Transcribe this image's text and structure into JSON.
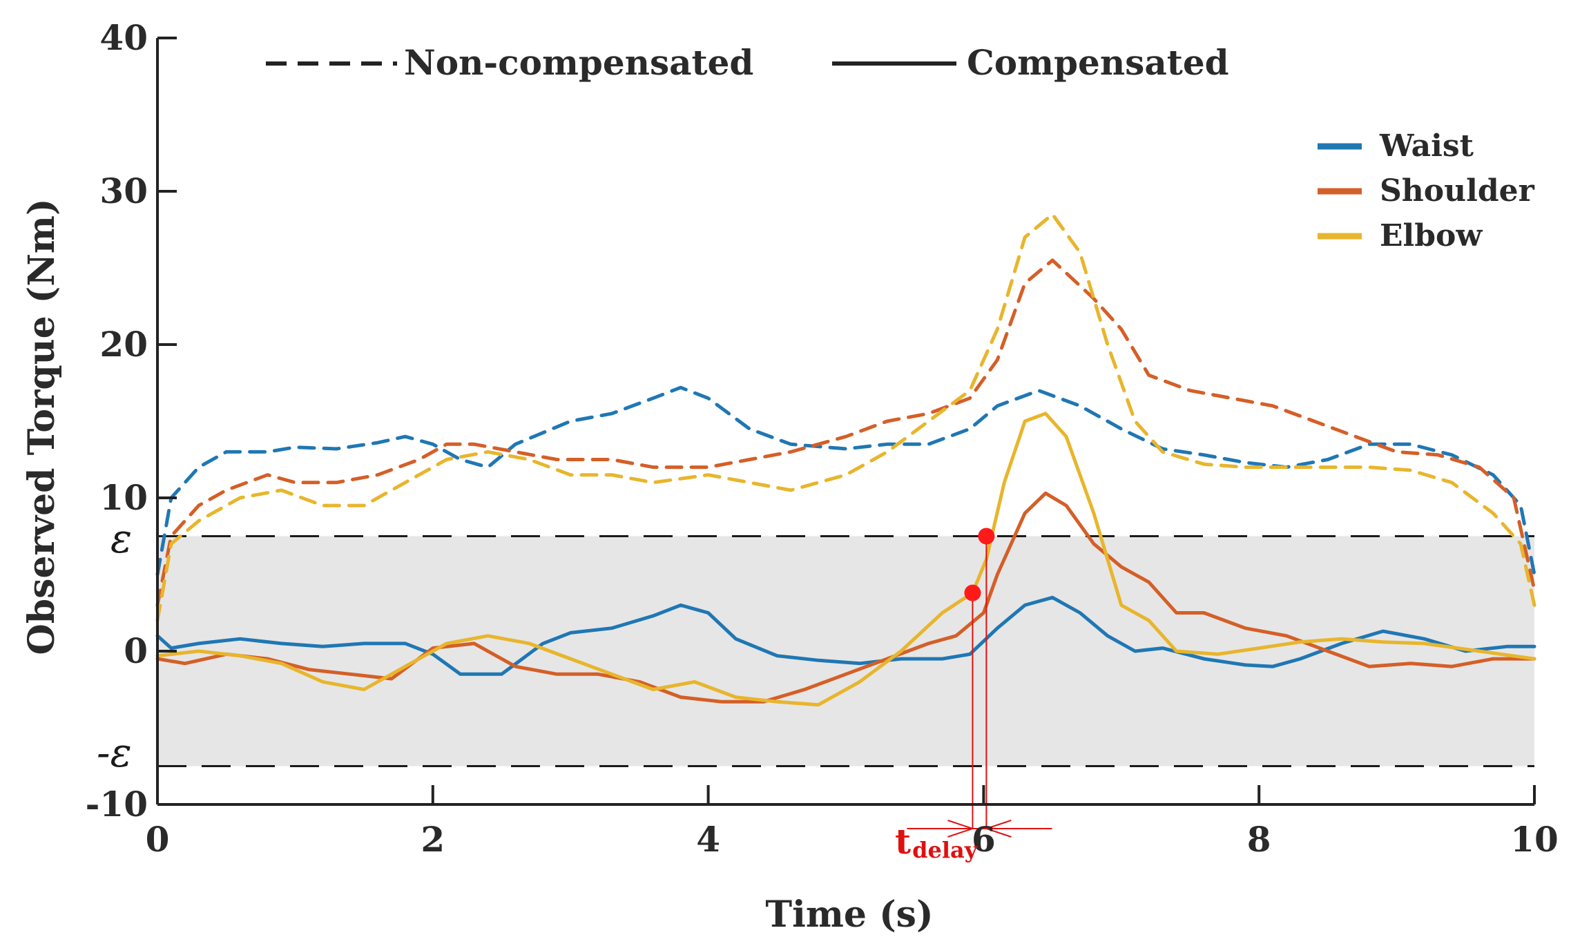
{
  "chart_data": {
    "type": "line",
    "title": "",
    "xlabel": "Time (s)",
    "ylabel": "Observed Torque (Nm)",
    "xlim": [
      0,
      10
    ],
    "ylim": [
      -10,
      40
    ],
    "xticks": [
      0,
      2,
      4,
      6,
      8,
      10
    ],
    "xtick_labels": [
      "0",
      "2",
      "4",
      "6",
      "8",
      "10"
    ],
    "yticks": [
      -10,
      0,
      10,
      20,
      30,
      40
    ],
    "ytick_labels": [
      "-10",
      "0",
      "10",
      "20",
      "30",
      "40"
    ],
    "grid": false,
    "threshold": {
      "value": 7.5,
      "upper_label": "ε",
      "lower_label": "-ε"
    },
    "line_style_legend": [
      {
        "style": "dashed",
        "label": "Non-compensated"
      },
      {
        "style": "solid",
        "label": "Compensated"
      }
    ],
    "colors": {
      "Waist": "#1f77b4",
      "Shoulder": "#d45f27",
      "Elbow": "#e8b52c",
      "band": "#e6e6e6",
      "marker": "#ff1a1a",
      "annotation": "#e01010"
    },
    "series": [
      {
        "name": "Waist",
        "variant": "Non-compensated",
        "style": "dashed",
        "x": [
          0,
          0.1,
          0.3,
          0.5,
          0.8,
          1.0,
          1.3,
          1.6,
          1.8,
          2.0,
          2.2,
          2.4,
          2.6,
          3.0,
          3.3,
          3.6,
          3.8,
          4.0,
          4.3,
          4.6,
          5.0,
          5.3,
          5.6,
          5.9,
          6.1,
          6.4,
          6.7,
          7.0,
          7.3,
          7.6,
          7.9,
          8.2,
          8.5,
          8.8,
          9.1,
          9.4,
          9.7,
          9.9,
          10.0
        ],
        "y": [
          5,
          10,
          12,
          13,
          13,
          13.3,
          13.2,
          13.6,
          14,
          13.5,
          12.5,
          12,
          13.5,
          15,
          15.5,
          16.5,
          17.2,
          16.5,
          14.5,
          13.5,
          13.2,
          13.5,
          13.5,
          14.5,
          16,
          17,
          16,
          14.5,
          13.2,
          12.8,
          12.3,
          12,
          12.5,
          13.5,
          13.5,
          12.8,
          11.5,
          9.5,
          5
        ]
      },
      {
        "name": "Shoulder",
        "variant": "Non-compensated",
        "style": "dashed",
        "x": [
          0,
          0.1,
          0.3,
          0.5,
          0.8,
          1.0,
          1.3,
          1.6,
          1.9,
          2.1,
          2.3,
          2.6,
          2.9,
          3.3,
          3.6,
          4.0,
          4.3,
          4.6,
          5.0,
          5.3,
          5.6,
          5.9,
          6.1,
          6.3,
          6.5,
          6.8,
          7.0,
          7.2,
          7.5,
          7.8,
          8.1,
          8.4,
          8.7,
          9.0,
          9.3,
          9.6,
          9.85,
          10.0
        ],
        "y": [
          3,
          7.5,
          9.5,
          10.5,
          11.5,
          11,
          11,
          11.5,
          12.5,
          13.5,
          13.5,
          13,
          12.5,
          12.5,
          12,
          12,
          12.5,
          13,
          14,
          15,
          15.5,
          16.5,
          19,
          24,
          25.5,
          23,
          21,
          18,
          17,
          16.5,
          16,
          15,
          14,
          13,
          12.8,
          12,
          10,
          4
        ]
      },
      {
        "name": "Elbow",
        "variant": "Non-compensated",
        "style": "dashed",
        "x": [
          0,
          0.1,
          0.3,
          0.6,
          0.9,
          1.2,
          1.5,
          1.8,
          2.1,
          2.4,
          2.7,
          3.0,
          3.3,
          3.6,
          4.0,
          4.3,
          4.6,
          5.0,
          5.3,
          5.6,
          5.9,
          6.1,
          6.3,
          6.5,
          6.7,
          6.9,
          7.1,
          7.3,
          7.6,
          7.9,
          8.2,
          8.5,
          8.8,
          9.1,
          9.4,
          9.7,
          9.9,
          10.0
        ],
        "y": [
          2,
          7,
          8.5,
          10,
          10.5,
          9.5,
          9.5,
          11,
          12.5,
          13,
          12.5,
          11.5,
          11.5,
          11,
          11.5,
          11,
          10.5,
          11.5,
          13,
          15,
          17,
          21,
          27,
          28.5,
          26,
          20,
          15,
          13,
          12.2,
          12,
          12,
          12,
          12,
          11.8,
          11,
          9,
          7,
          3
        ]
      },
      {
        "name": "Waist",
        "variant": "Compensated",
        "style": "solid",
        "x": [
          0,
          0.1,
          0.3,
          0.6,
          0.9,
          1.2,
          1.5,
          1.8,
          2.0,
          2.2,
          2.5,
          2.8,
          3.0,
          3.3,
          3.6,
          3.8,
          4.0,
          4.2,
          4.5,
          4.8,
          5.1,
          5.4,
          5.7,
          5.9,
          6.1,
          6.3,
          6.5,
          6.7,
          6.9,
          7.1,
          7.3,
          7.6,
          7.9,
          8.1,
          8.3,
          8.6,
          8.9,
          9.2,
          9.5,
          9.8,
          10.0
        ],
        "y": [
          1,
          0.2,
          0.5,
          0.8,
          0.5,
          0.3,
          0.5,
          0.5,
          -0.2,
          -1.5,
          -1.5,
          0.5,
          1.2,
          1.5,
          2.3,
          3,
          2.5,
          0.8,
          -0.3,
          -0.6,
          -0.8,
          -0.5,
          -0.5,
          -0.2,
          1.5,
          3,
          3.5,
          2.5,
          1,
          0,
          0.2,
          -0.5,
          -0.9,
          -1,
          -0.5,
          0.5,
          1.3,
          0.8,
          0,
          0.3,
          0.3
        ]
      },
      {
        "name": "Shoulder",
        "variant": "Compensated",
        "style": "solid",
        "x": [
          0,
          0.2,
          0.5,
          0.8,
          1.1,
          1.4,
          1.7,
          2.0,
          2.3,
          2.6,
          2.9,
          3.2,
          3.5,
          3.8,
          4.1,
          4.4,
          4.7,
          5.0,
          5.3,
          5.6,
          5.8,
          6.0,
          6.1,
          6.3,
          6.45,
          6.6,
          6.8,
          7.0,
          7.2,
          7.4,
          7.6,
          7.9,
          8.2,
          8.5,
          8.8,
          9.1,
          9.4,
          9.7,
          10.0
        ],
        "y": [
          -0.5,
          -0.8,
          -0.2,
          -0.5,
          -1.2,
          -1.5,
          -1.8,
          0.2,
          0.5,
          -1,
          -1.5,
          -1.5,
          -2,
          -3,
          -3.3,
          -3.3,
          -2.5,
          -1.5,
          -0.5,
          0.5,
          1,
          2.5,
          5,
          9,
          10.3,
          9.5,
          7,
          5.5,
          4.5,
          2.5,
          2.5,
          1.5,
          1,
          0,
          -1,
          -0.8,
          -1,
          -0.5,
          -0.5
        ]
      },
      {
        "name": "Elbow",
        "variant": "Compensated",
        "style": "solid",
        "x": [
          0,
          0.3,
          0.6,
          0.9,
          1.2,
          1.5,
          1.8,
          2.1,
          2.4,
          2.7,
          3.0,
          3.3,
          3.6,
          3.9,
          4.2,
          4.5,
          4.8,
          5.1,
          5.4,
          5.7,
          5.92,
          6.02,
          6.15,
          6.3,
          6.45,
          6.6,
          6.8,
          7.0,
          7.2,
          7.4,
          7.7,
          8.0,
          8.3,
          8.6,
          8.9,
          9.2,
          9.6,
          10.0
        ],
        "y": [
          -0.3,
          0,
          -0.3,
          -0.8,
          -2,
          -2.5,
          -1,
          0.5,
          1,
          0.5,
          -0.5,
          -1.5,
          -2.5,
          -2,
          -3,
          -3.3,
          -3.5,
          -2,
          0,
          2.5,
          3.8,
          6,
          11,
          15,
          15.5,
          14,
          9,
          3,
          2,
          0,
          -0.2,
          0.2,
          0.6,
          0.8,
          0.6,
          0.5,
          0,
          -0.5
        ]
      }
    ],
    "markers": [
      {
        "x": 5.92,
        "y": 3.8
      },
      {
        "x": 6.02,
        "y": 7.5
      }
    ],
    "delay_annotation": {
      "x_start": 5.92,
      "x_end": 6.02,
      "label": "t",
      "subscript": "delay"
    }
  }
}
